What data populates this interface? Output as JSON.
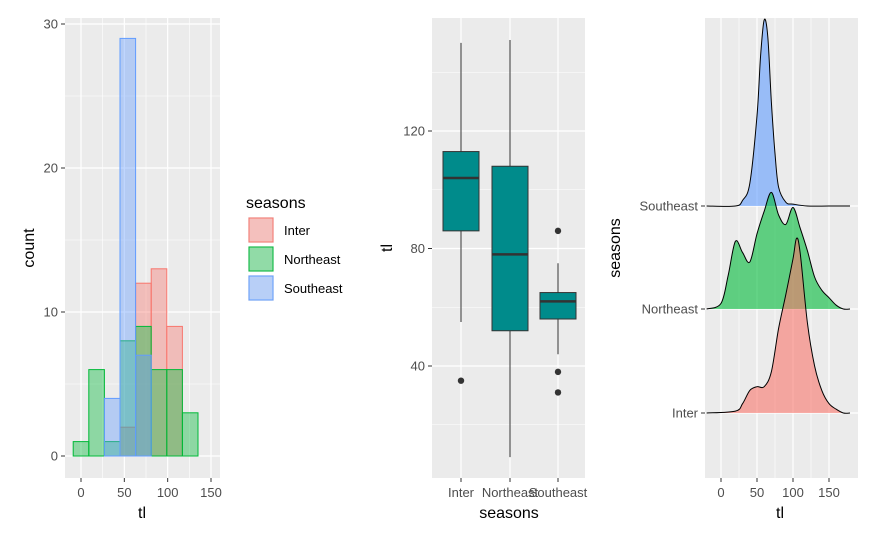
{
  "colors": {
    "inter": "#F8766D",
    "northeast": "#00BA38",
    "southeast": "#619CFF",
    "box_fill": "#008B8B",
    "panel": "#EBEBEB"
  },
  "chart_data": [
    {
      "type": "bar",
      "subtype": "histogram",
      "xlabel": "tl",
      "ylabel": "count",
      "xlim": [
        -10,
        160
      ],
      "ylim": [
        0,
        30
      ],
      "xticks": [
        "0",
        "50",
        "100",
        "150"
      ],
      "xtick_values": [
        0,
        50,
        100,
        150
      ],
      "yticks": [
        "0",
        "10",
        "20",
        "30"
      ],
      "ytick_values": [
        0,
        10,
        20,
        30
      ],
      "bin_width": 18,
      "bin_centers": [
        0,
        18,
        36,
        54,
        72,
        90,
        108,
        126,
        144
      ],
      "series": [
        {
          "name": "Inter",
          "values": [
            0,
            0,
            0,
            2,
            12,
            13,
            9,
            0,
            0
          ]
        },
        {
          "name": "Northeast",
          "values": [
            1,
            6,
            1,
            8,
            9,
            6,
            6,
            3,
            0
          ]
        },
        {
          "name": "Southeast",
          "values": [
            0,
            0,
            4,
            29,
            7,
            0,
            0,
            0,
            0
          ]
        }
      ],
      "legend": {
        "title": "seasons",
        "entries": [
          "Inter",
          "Northeast",
          "Southeast"
        ],
        "placement": "right"
      },
      "grid": true
    },
    {
      "type": "box",
      "xlabel": "seasons",
      "ylabel": "tl",
      "ylim": [
        5,
        155
      ],
      "categories": [
        "Inter",
        "Northeast",
        "Southeast"
      ],
      "yticks": [
        "40",
        "80",
        "120"
      ],
      "ytick_values": [
        40,
        80,
        120
      ],
      "boxes": [
        {
          "category": "Inter",
          "whisker_low": 55,
          "q1": 86,
          "median": 104,
          "q3": 113,
          "whisker_high": 150,
          "outliers": [
            35
          ]
        },
        {
          "category": "Northeast",
          "whisker_low": 9,
          "q1": 52,
          "median": 78,
          "q3": 108,
          "whisker_high": 151,
          "outliers": []
        },
        {
          "category": "Southeast",
          "whisker_low": 44,
          "q1": 56,
          "median": 62,
          "q3": 65,
          "whisker_high": 75,
          "outliers": [
            86,
            38,
            31
          ]
        }
      ],
      "grid": true
    },
    {
      "type": "area",
      "subtype": "ridgeline",
      "xlabel": "tl",
      "ylabel": "seasons",
      "xlim": [
        -25,
        180
      ],
      "xticks": [
        "0",
        "50",
        "100",
        "150"
      ],
      "xtick_values": [
        0,
        50,
        100,
        150
      ],
      "categories": [
        "Inter",
        "Northeast",
        "Southeast"
      ],
      "series": [
        {
          "name": "Inter",
          "x": [
            -20,
            20,
            30,
            40,
            50,
            60,
            70,
            80,
            90,
            100,
            105,
            110,
            120,
            130,
            140,
            150,
            160,
            170,
            180
          ],
          "y": [
            0.0,
            0.01,
            0.05,
            0.12,
            0.14,
            0.14,
            0.22,
            0.45,
            0.63,
            0.82,
            0.93,
            0.85,
            0.48,
            0.25,
            0.12,
            0.05,
            0.02,
            0.0,
            0.0
          ]
        },
        {
          "name": "Northeast",
          "x": [
            -20,
            0,
            10,
            20,
            30,
            40,
            50,
            60,
            70,
            80,
            90,
            100,
            110,
            120,
            130,
            140,
            150,
            160,
            170,
            180
          ],
          "y": [
            0.0,
            0.03,
            0.18,
            0.36,
            0.3,
            0.25,
            0.4,
            0.52,
            0.62,
            0.5,
            0.45,
            0.54,
            0.43,
            0.31,
            0.17,
            0.1,
            0.06,
            0.02,
            0.0,
            0.0
          ]
        },
        {
          "name": "Southeast",
          "x": [
            -20,
            20,
            30,
            40,
            50,
            55,
            60,
            65,
            70,
            75,
            80,
            90,
            100,
            120,
            150,
            180
          ],
          "y": [
            0.0,
            0.0,
            0.03,
            0.12,
            0.48,
            0.8,
            0.99,
            0.9,
            0.55,
            0.28,
            0.1,
            0.02,
            0.01,
            0.0,
            0.0,
            0.0
          ]
        }
      ],
      "grid": true
    }
  ]
}
